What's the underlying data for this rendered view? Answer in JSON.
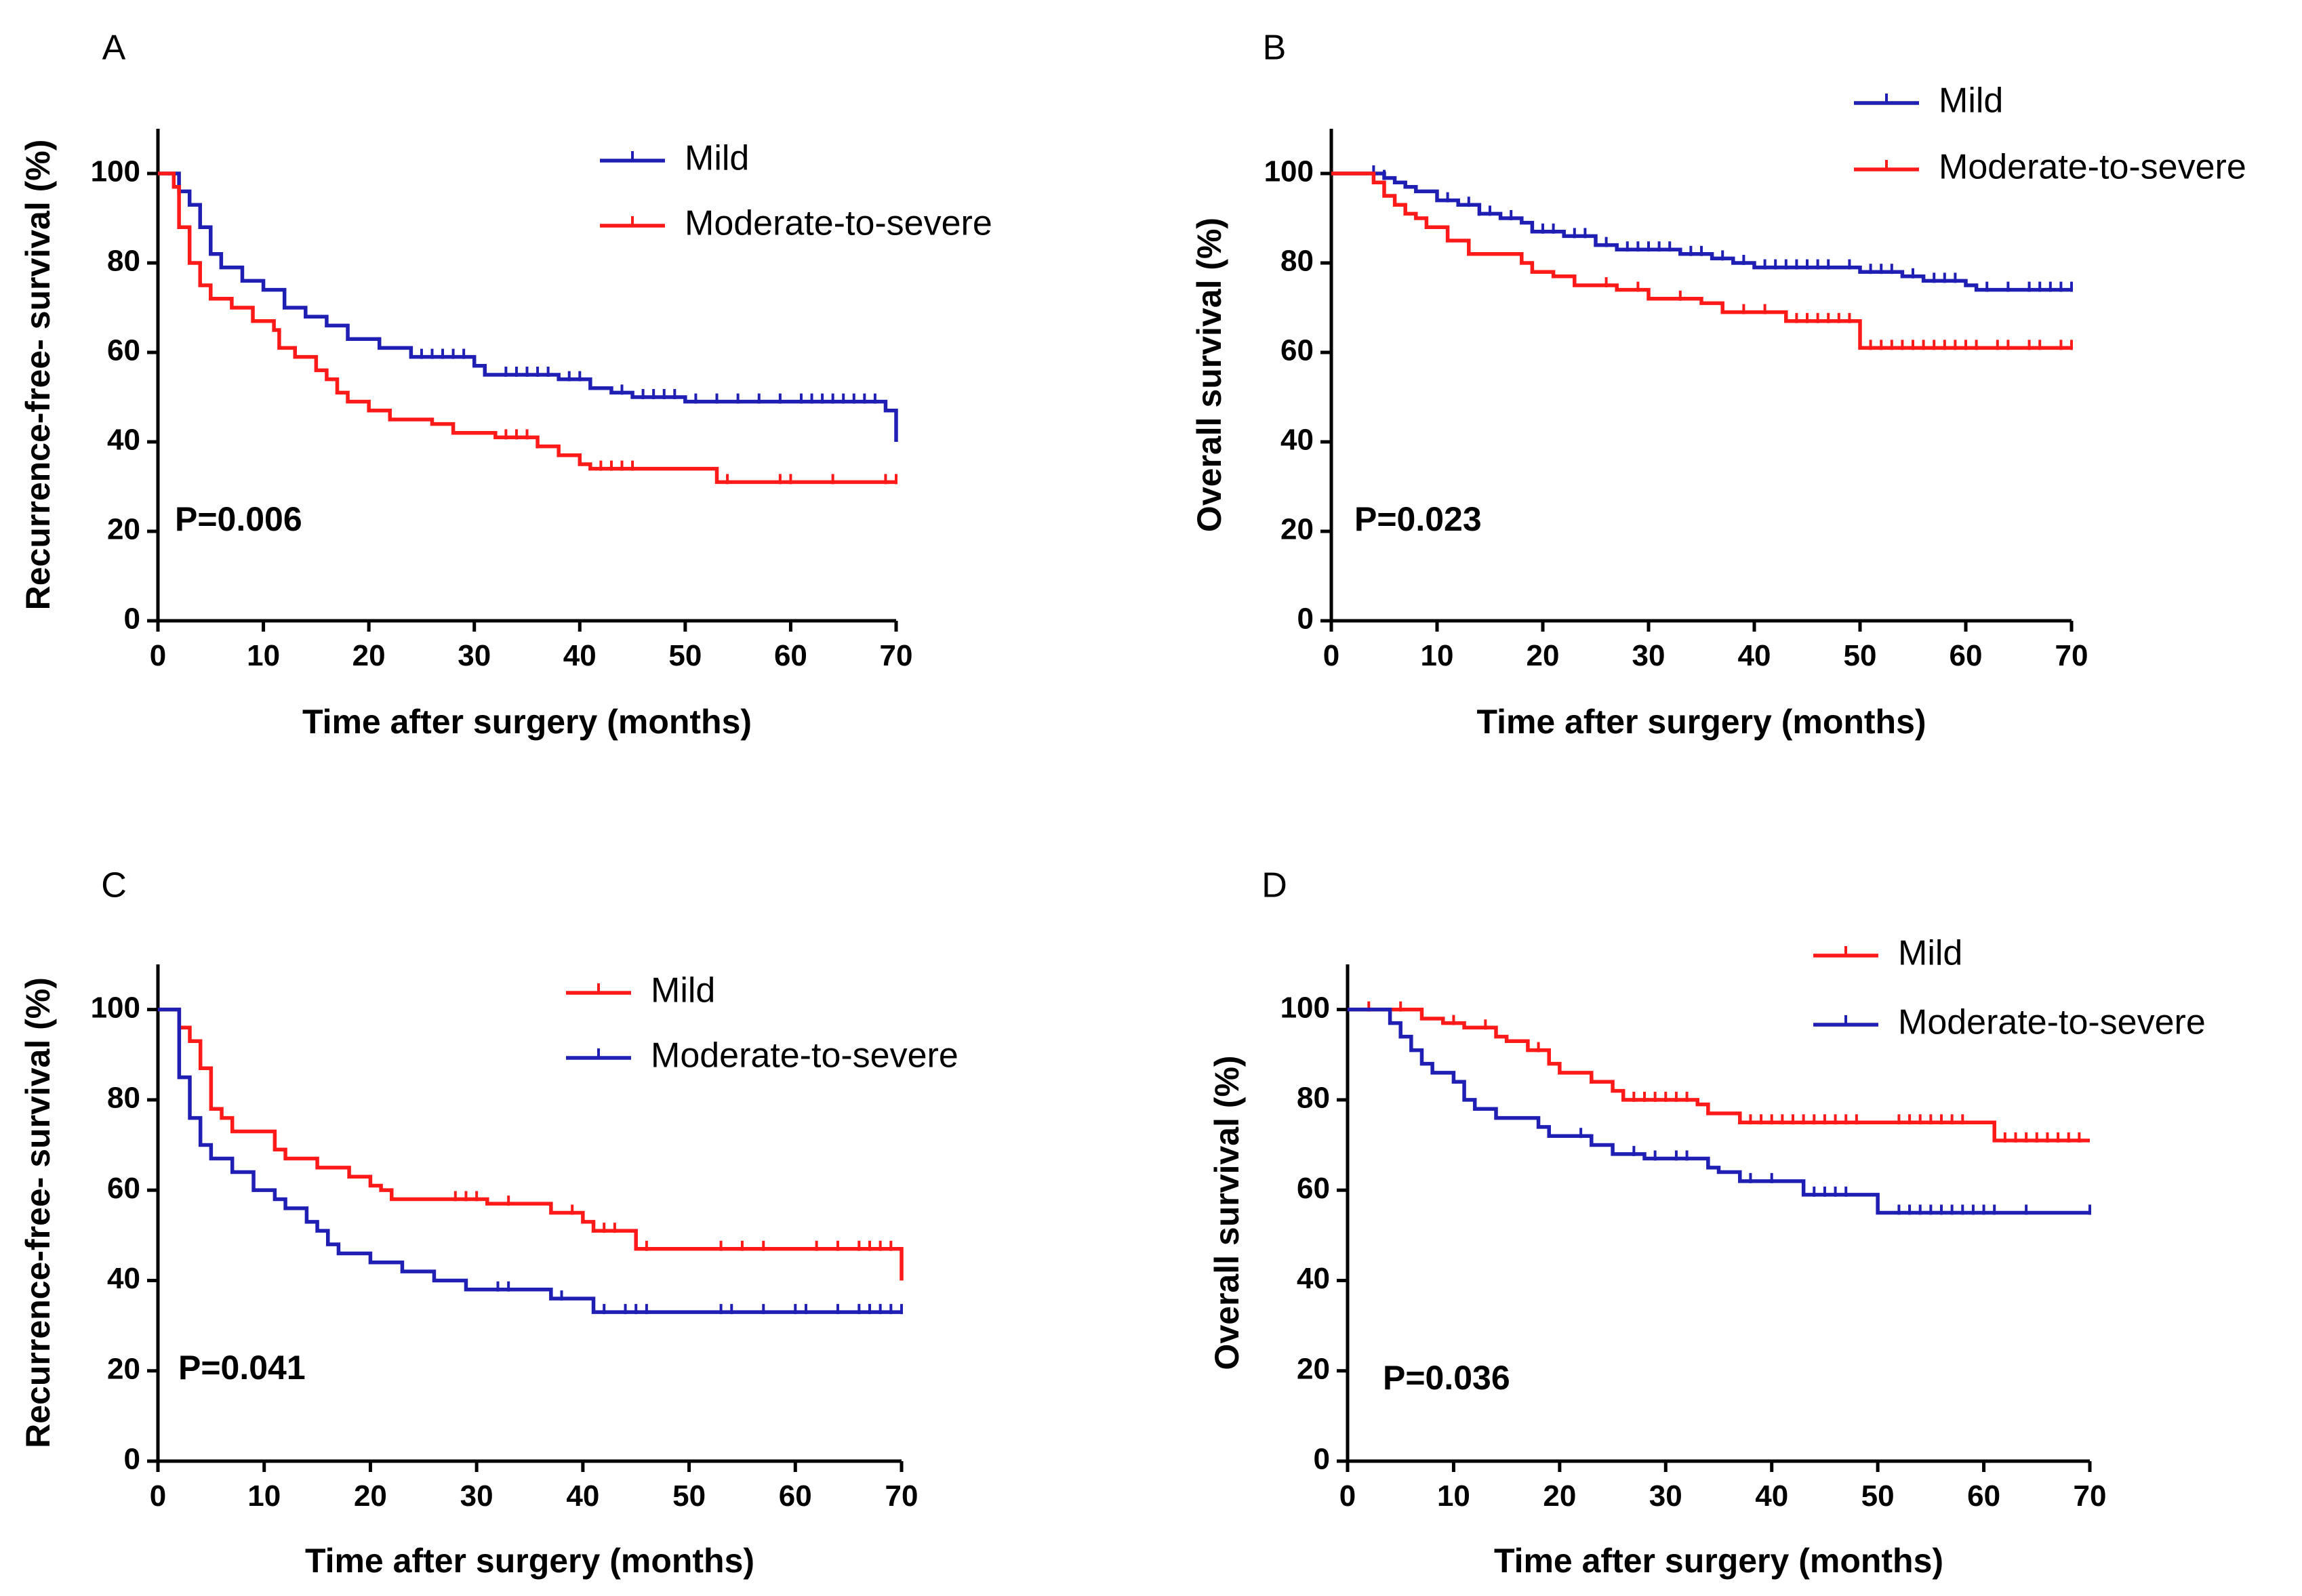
{
  "chart_data": [
    {
      "type": "line",
      "panel": "A",
      "ylabel": "Recurrence-free- survival (%)",
      "xlabel": "Time after surgery (months)",
      "xlim": [
        0,
        70
      ],
      "ylim": [
        0,
        110
      ],
      "xticks": [
        0,
        10,
        20,
        30,
        40,
        50,
        60,
        70
      ],
      "yticks": [
        0,
        20,
        40,
        60,
        80,
        100
      ],
      "legend_position": "top-right",
      "annotation": "P=0.006",
      "series": [
        {
          "name": "Mild",
          "color": "#1f1fb4",
          "steps": [
            [
              0,
              100
            ],
            [
              2,
              96
            ],
            [
              3,
              93
            ],
            [
              4,
              88
            ],
            [
              5,
              82
            ],
            [
              6,
              79
            ],
            [
              8,
              76
            ],
            [
              10,
              74
            ],
            [
              12,
              70
            ],
            [
              14,
              68
            ],
            [
              16,
              66
            ],
            [
              18,
              63
            ],
            [
              21,
              61
            ],
            [
              24,
              59
            ],
            [
              30,
              57
            ],
            [
              31,
              55
            ],
            [
              38,
              54
            ],
            [
              41,
              52
            ],
            [
              43,
              51
            ],
            [
              45,
              50
            ],
            [
              50,
              49
            ],
            [
              69,
              47
            ],
            [
              70,
              40
            ]
          ],
          "censors": [
            25,
            26,
            27,
            28,
            29,
            33,
            34,
            35,
            36,
            37,
            39,
            40,
            44,
            46,
            47,
            48,
            49,
            51,
            53,
            55,
            57,
            59,
            61,
            62,
            63,
            64,
            65,
            66,
            67,
            68
          ]
        },
        {
          "name": "Moderate-to-severe",
          "color": "#ff1a1a",
          "steps": [
            [
              0,
              100
            ],
            [
              1.5,
              97
            ],
            [
              2,
              88
            ],
            [
              3,
              80
            ],
            [
              4,
              75
            ],
            [
              5,
              72
            ],
            [
              7,
              70
            ],
            [
              9,
              67
            ],
            [
              11,
              65
            ],
            [
              11.5,
              61
            ],
            [
              13,
              59
            ],
            [
              15,
              56
            ],
            [
              16,
              54
            ],
            [
              17,
              51
            ],
            [
              18,
              49
            ],
            [
              20,
              47
            ],
            [
              22,
              45
            ],
            [
              26,
              44
            ],
            [
              28,
              42
            ],
            [
              32,
              41
            ],
            [
              36,
              39
            ],
            [
              38,
              37
            ],
            [
              40,
              35
            ],
            [
              41,
              34
            ],
            [
              53,
              31
            ],
            [
              70,
              31
            ]
          ],
          "censors": [
            33,
            34,
            35,
            36,
            42,
            43,
            44,
            45,
            54,
            59,
            60,
            64,
            69,
            70
          ]
        }
      ]
    },
    {
      "type": "line",
      "panel": "B",
      "ylabel": "Overall survival (%)",
      "xlabel": "Time after surgery (months)",
      "xlim": [
        0,
        70
      ],
      "ylim": [
        0,
        110
      ],
      "xticks": [
        0,
        10,
        20,
        30,
        40,
        50,
        60,
        70
      ],
      "yticks": [
        0,
        20,
        40,
        60,
        80,
        100
      ],
      "legend_position": "top-right",
      "annotation": "P=0.023",
      "series": [
        {
          "name": "Mild",
          "color": "#1f1fb4",
          "steps": [
            [
              0,
              100
            ],
            [
              4,
              100
            ],
            [
              5,
              99
            ],
            [
              6,
              98
            ],
            [
              7,
              97
            ],
            [
              8,
              96
            ],
            [
              10,
              94
            ],
            [
              12,
              93
            ],
            [
              14,
              91
            ],
            [
              16,
              90
            ],
            [
              18,
              89
            ],
            [
              19,
              87
            ],
            [
              22,
              86
            ],
            [
              25,
              84
            ],
            [
              27,
              83
            ],
            [
              33,
              82
            ],
            [
              36,
              81
            ],
            [
              38,
              80
            ],
            [
              40,
              79
            ],
            [
              50,
              78
            ],
            [
              54,
              77
            ],
            [
              56,
              76
            ],
            [
              60,
              75
            ],
            [
              61,
              74
            ],
            [
              70,
              74
            ]
          ],
          "censors": [
            4,
            5,
            11,
            13,
            14,
            15,
            17,
            20,
            21,
            23,
            24,
            26,
            28,
            29,
            30,
            31,
            32,
            34,
            35,
            37,
            39,
            41,
            42,
            43,
            44,
            45,
            46,
            47,
            49,
            51,
            52,
            53,
            55,
            57,
            58,
            59,
            62,
            64,
            66,
            67,
            68,
            69,
            70
          ]
        },
        {
          "name": "Moderate-to-severe",
          "color": "#ff1a1a",
          "steps": [
            [
              0,
              100
            ],
            [
              4,
              98
            ],
            [
              5,
              95
            ],
            [
              6,
              93
            ],
            [
              7,
              91
            ],
            [
              8,
              90
            ],
            [
              9,
              88
            ],
            [
              11,
              85
            ],
            [
              13,
              82
            ],
            [
              18,
              80
            ],
            [
              19,
              78
            ],
            [
              21,
              77
            ],
            [
              23,
              75
            ],
            [
              27,
              74
            ],
            [
              30,
              72
            ],
            [
              35,
              71
            ],
            [
              37,
              69
            ],
            [
              43,
              67
            ],
            [
              50,
              61
            ],
            [
              70,
              61
            ]
          ],
          "censors": [
            26,
            29,
            33,
            39,
            41,
            44,
            45,
            46,
            47,
            48,
            49,
            51,
            52,
            53,
            54,
            55,
            56,
            57,
            58,
            59,
            60,
            61,
            63,
            64,
            66,
            67,
            69,
            70
          ]
        }
      ]
    },
    {
      "type": "line",
      "panel": "C",
      "ylabel": "Recurrence-free- survival (%)",
      "xlabel": "Time after surgery (months)",
      "xlim": [
        0,
        70
      ],
      "ylim": [
        0,
        110
      ],
      "xticks": [
        0,
        10,
        20,
        30,
        40,
        50,
        60,
        70
      ],
      "yticks": [
        0,
        20,
        40,
        60,
        80,
        100
      ],
      "legend_position": "top-right",
      "annotation": "P=0.041",
      "series": [
        {
          "name": "Mild",
          "color": "#ff1a1a",
          "steps": [
            [
              0,
              100
            ],
            [
              2,
              96
            ],
            [
              3,
              93
            ],
            [
              4,
              87
            ],
            [
              5,
              78
            ],
            [
              6,
              76
            ],
            [
              7,
              73
            ],
            [
              11,
              69
            ],
            [
              12,
              67
            ],
            [
              15,
              65
            ],
            [
              18,
              63
            ],
            [
              20,
              61
            ],
            [
              21,
              60
            ],
            [
              22,
              58
            ],
            [
              31,
              57
            ],
            [
              37,
              55
            ],
            [
              40,
              53
            ],
            [
              41,
              51
            ],
            [
              45,
              47
            ],
            [
              70,
              47
            ],
            [
              70,
              40
            ]
          ],
          "censors": [
            28,
            29,
            30,
            33,
            39,
            42,
            43,
            46,
            53,
            55,
            57,
            62,
            64,
            66,
            67,
            68,
            69
          ]
        },
        {
          "name": "Moderate-to-severe",
          "color": "#1f1fb4",
          "steps": [
            [
              0,
              100
            ],
            [
              2,
              85
            ],
            [
              3,
              76
            ],
            [
              4,
              70
            ],
            [
              5,
              67
            ],
            [
              7,
              64
            ],
            [
              9,
              60
            ],
            [
              11,
              58
            ],
            [
              12,
              56
            ],
            [
              14,
              53
            ],
            [
              15,
              51
            ],
            [
              16,
              48
            ],
            [
              17,
              46
            ],
            [
              20,
              44
            ],
            [
              23,
              42
            ],
            [
              26,
              40
            ],
            [
              29,
              38
            ],
            [
              37,
              36
            ],
            [
              41,
              33
            ],
            [
              70,
              33
            ]
          ],
          "censors": [
            32,
            33,
            38,
            42,
            44,
            45,
            46,
            53,
            54,
            57,
            60,
            61,
            64,
            66,
            67,
            68,
            69,
            70
          ]
        }
      ]
    },
    {
      "type": "line",
      "panel": "D",
      "ylabel": "Overall survival (%)",
      "xlabel": "Time after surgery (months)",
      "xlim": [
        0,
        70
      ],
      "ylim": [
        0,
        110
      ],
      "xticks": [
        0,
        10,
        20,
        30,
        40,
        50,
        60,
        70
      ],
      "yticks": [
        0,
        20,
        40,
        60,
        80,
        100
      ],
      "legend_position": "top-right",
      "annotation": "P=0.036",
      "series": [
        {
          "name": "Mild",
          "color": "#ff1a1a",
          "steps": [
            [
              0,
              100
            ],
            [
              6,
              100
            ],
            [
              7,
              98
            ],
            [
              9,
              97
            ],
            [
              11,
              96
            ],
            [
              14,
              94
            ],
            [
              15,
              93
            ],
            [
              17,
              91
            ],
            [
              19,
              88
            ],
            [
              20,
              86
            ],
            [
              23,
              84
            ],
            [
              25,
              82
            ],
            [
              26,
              80
            ],
            [
              33,
              79
            ],
            [
              34,
              77
            ],
            [
              37,
              75
            ],
            [
              61,
              71
            ],
            [
              70,
              71
            ]
          ],
          "censors": [
            2,
            5,
            10,
            13,
            18,
            27,
            28,
            29,
            30,
            31,
            32,
            38,
            39,
            40,
            41,
            42,
            43,
            44,
            45,
            46,
            47,
            48,
            52,
            53,
            54,
            55,
            56,
            57,
            58,
            62,
            63,
            64,
            65,
            66,
            67,
            68,
            69
          ]
        },
        {
          "name": "Moderate-to-severe",
          "color": "#1f1fb4",
          "steps": [
            [
              0,
              100
            ],
            [
              3,
              100
            ],
            [
              4,
              97
            ],
            [
              5,
              94
            ],
            [
              6,
              91
            ],
            [
              7,
              88
            ],
            [
              8,
              86
            ],
            [
              10,
              84
            ],
            [
              11,
              80
            ],
            [
              12,
              78
            ],
            [
              14,
              76
            ],
            [
              18,
              74
            ],
            [
              19,
              72
            ],
            [
              23,
              70
            ],
            [
              25,
              68
            ],
            [
              28,
              67
            ],
            [
              34,
              65
            ],
            [
              35,
              64
            ],
            [
              37,
              62
            ],
            [
              43,
              59
            ],
            [
              50,
              55
            ],
            [
              70,
              55
            ]
          ],
          "censors": [
            22,
            27,
            29,
            31,
            32,
            38,
            40,
            44,
            45,
            46,
            47,
            52,
            53,
            54,
            55,
            56,
            57,
            58,
            59,
            60,
            61,
            64,
            70
          ]
        }
      ]
    }
  ]
}
